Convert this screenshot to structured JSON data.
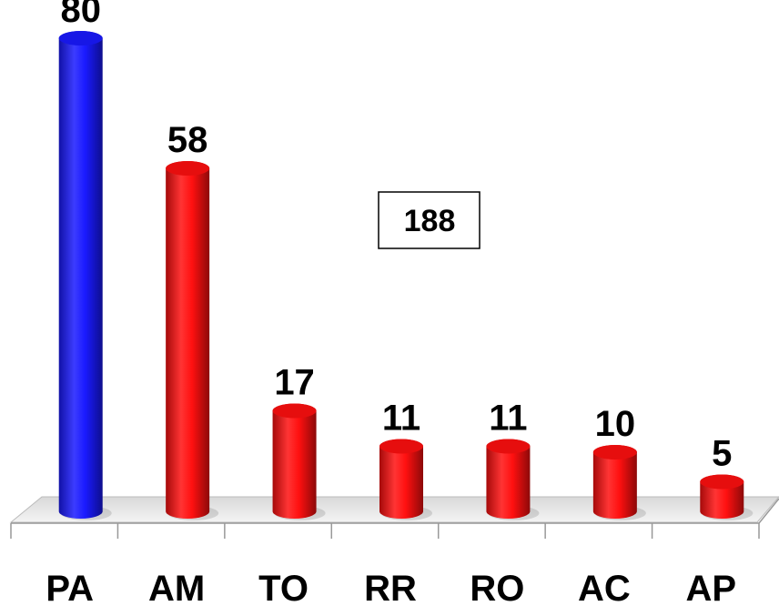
{
  "chart_data": {
    "type": "bar",
    "categories": [
      "PA",
      "AM",
      "TO",
      "RR",
      "RO",
      "AC",
      "AP"
    ],
    "values": [
      80,
      58,
      17,
      11,
      11,
      10,
      5
    ],
    "colors": [
      "#1a1aff",
      "#ff1010",
      "#ff1010",
      "#ff1010",
      "#ff1010",
      "#ff1010",
      "#ff1010"
    ],
    "annotation": "188"
  }
}
